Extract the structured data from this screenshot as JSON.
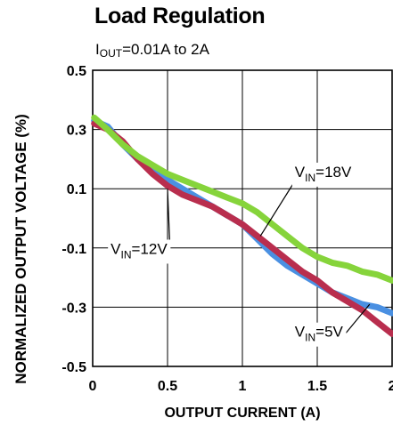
{
  "chart_data": {
    "type": "line",
    "title": "Load Regulation",
    "subtitle": {
      "main": "I",
      "sub": "OUT",
      "rest": "=0.01A to 2A"
    },
    "xlabel": "OUTPUT CURRENT (A)",
    "ylabel": "NORMALIZED OUTPUT VOLTAGE (%)",
    "xlim": [
      0,
      2
    ],
    "ylim": [
      -0.5,
      0.5
    ],
    "xticks": [
      0,
      0.5,
      1,
      1.5,
      2
    ],
    "xtick_labels": [
      "0",
      "0.5",
      "1",
      "1.5",
      "2"
    ],
    "yticks": [
      0.5,
      0.3,
      0.1,
      -0.1,
      -0.3,
      -0.5
    ],
    "ytick_labels": [
      "0.5",
      "0.3",
      "0.1",
      "-0.1",
      "-0.3",
      "-0.5"
    ],
    "grid": true,
    "series": [
      {
        "color": "#4a90e2",
        "x": [
          0.01,
          0.1,
          0.2,
          0.3,
          0.4,
          0.5,
          0.6,
          0.7,
          0.8,
          0.9,
          1.0,
          1.1,
          1.2,
          1.3,
          1.4,
          1.5,
          1.6,
          1.7,
          1.8,
          1.9,
          2.0
        ],
        "y": [
          0.33,
          0.31,
          0.25,
          0.2,
          0.16,
          0.13,
          0.1,
          0.07,
          0.04,
          0.01,
          -0.02,
          -0.07,
          -0.12,
          -0.16,
          -0.19,
          -0.22,
          -0.25,
          -0.27,
          -0.29,
          -0.3,
          -0.32
        ]
      },
      {
        "color": "#b92e4e",
        "x": [
          0.01,
          0.1,
          0.2,
          0.3,
          0.4,
          0.5,
          0.6,
          0.7,
          0.8,
          0.9,
          1.0,
          1.1,
          1.2,
          1.3,
          1.4,
          1.5,
          1.6,
          1.7,
          1.8,
          1.9,
          2.0
        ],
        "y": [
          0.32,
          0.3,
          0.26,
          0.2,
          0.15,
          0.11,
          0.08,
          0.06,
          0.04,
          0.01,
          -0.02,
          -0.06,
          -0.1,
          -0.14,
          -0.18,
          -0.21,
          -0.25,
          -0.28,
          -0.31,
          -0.35,
          -0.39
        ]
      },
      {
        "color": "#86d43b",
        "x": [
          0.01,
          0.1,
          0.2,
          0.3,
          0.4,
          0.5,
          0.6,
          0.7,
          0.8,
          0.9,
          1.0,
          1.1,
          1.2,
          1.3,
          1.4,
          1.5,
          1.6,
          1.7,
          1.8,
          1.9,
          2.0
        ],
        "y": [
          0.34,
          0.3,
          0.25,
          0.21,
          0.18,
          0.15,
          0.13,
          0.11,
          0.09,
          0.07,
          0.05,
          0.02,
          -0.02,
          -0.06,
          -0.1,
          -0.13,
          -0.15,
          -0.16,
          -0.18,
          -0.19,
          -0.21
        ]
      }
    ],
    "annotations": [
      {
        "main": "V",
        "sub": "IN",
        "rest": "=18V",
        "at": [
          1.35,
          0.14
        ],
        "pointer_to": [
          1.12,
          -0.06
        ]
      },
      {
        "main": "V",
        "sub": "IN",
        "rest": "=12V",
        "at": [
          0.12,
          -0.12
        ],
        "pointer_to": [
          0.5,
          0.1
        ]
      },
      {
        "main": "V",
        "sub": "IN",
        "rest": "=5V",
        "at": [
          1.35,
          -0.4
        ],
        "pointer_to": [
          1.85,
          -0.29
        ]
      }
    ]
  }
}
